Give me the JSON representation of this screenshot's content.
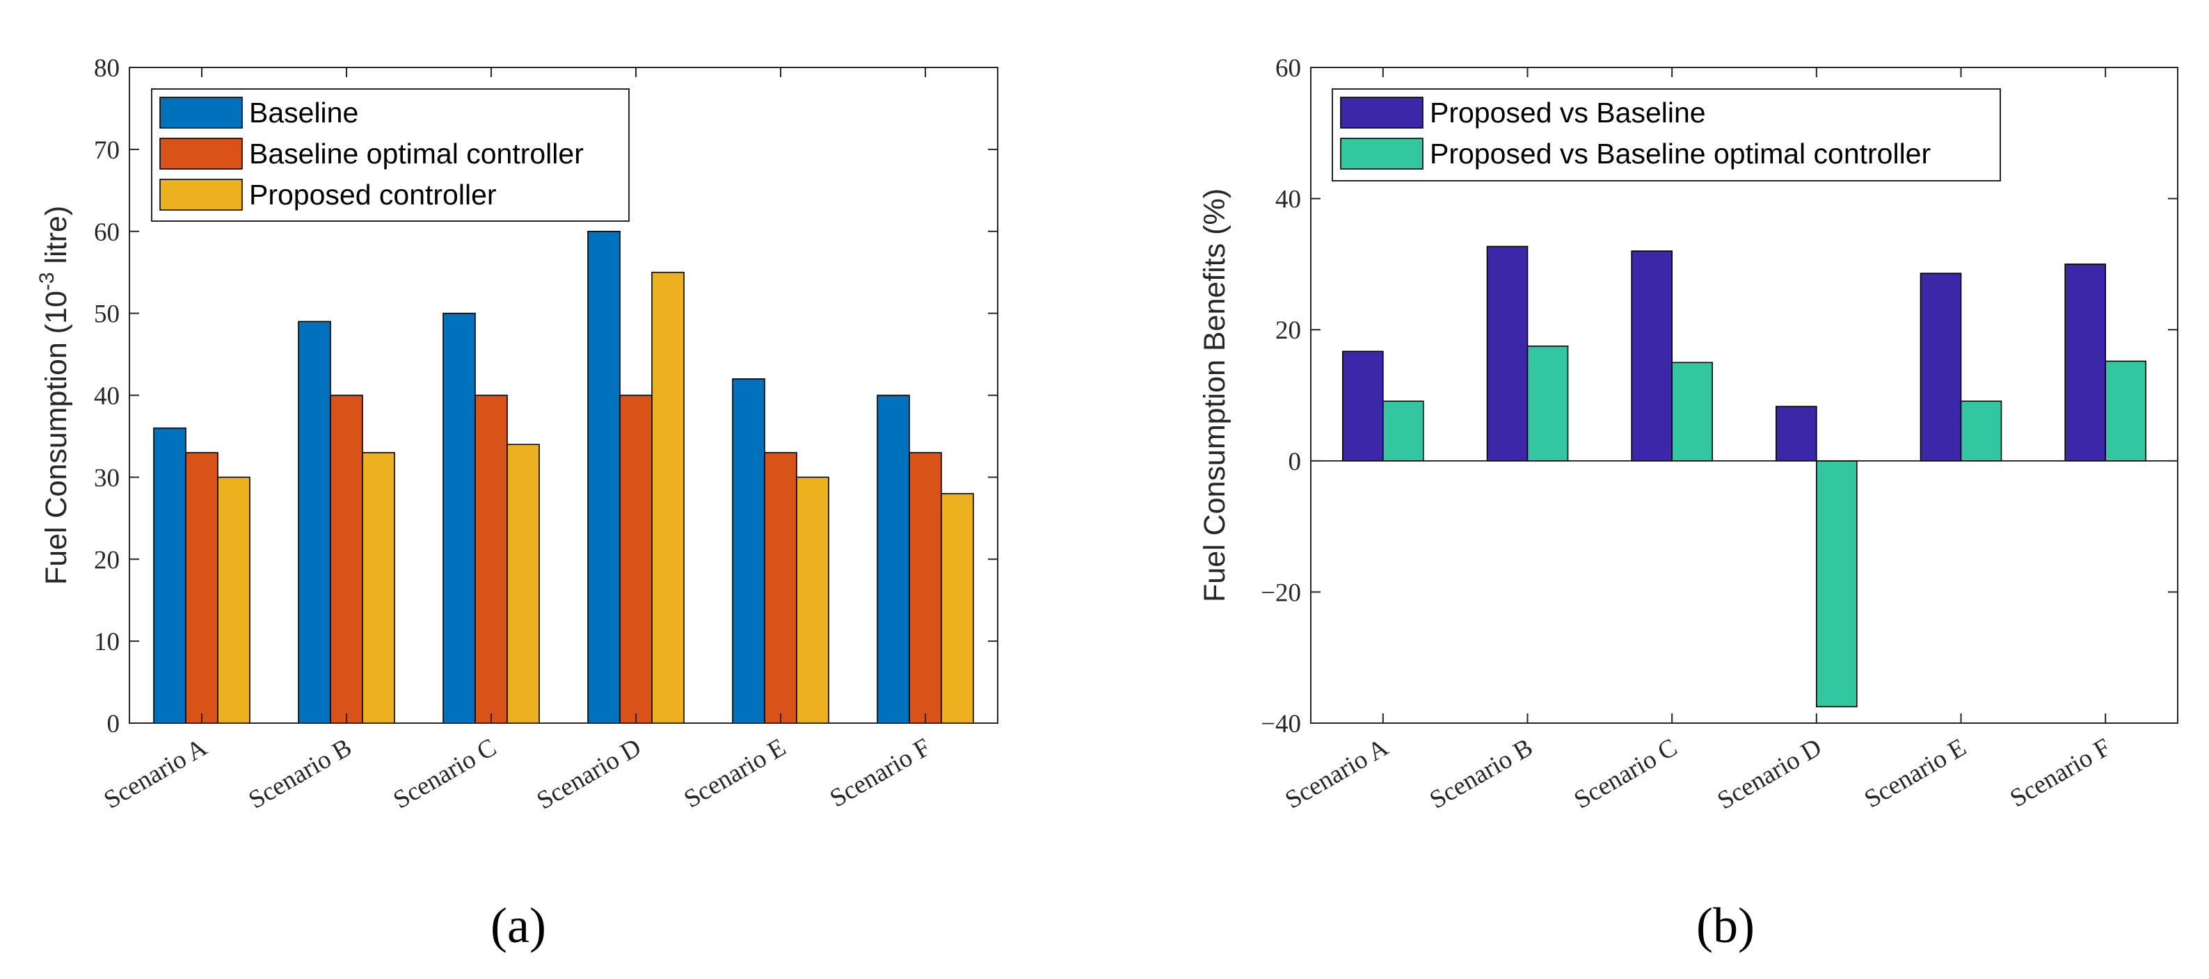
{
  "figure": {
    "panel_labels": [
      "(a)",
      "(b)"
    ]
  },
  "chart_data": [
    {
      "type": "bar",
      "panel": "(a)",
      "categories": [
        "Scenario A",
        "Scenario B",
        "Scenario C",
        "Scenario D",
        "Scenario E",
        "Scenario F"
      ],
      "series": [
        {
          "name": "Baseline",
          "color": "#0072BD",
          "values": [
            36,
            49,
            50,
            60,
            42,
            40
          ]
        },
        {
          "name": "Baseline optimal controller",
          "color": "#D95319",
          "values": [
            33,
            40,
            40,
            40,
            33,
            33
          ]
        },
        {
          "name": "Proposed controller",
          "color": "#EDB120",
          "values": [
            30,
            33,
            34,
            55,
            30,
            28
          ]
        }
      ],
      "ylabel": "Fuel Consumption (10",
      "ylabel_exponent": "-3",
      "ylabel_unit": " litre)",
      "xlabel": "",
      "ylim": [
        0,
        80
      ],
      "yticks": [
        0,
        10,
        20,
        30,
        40,
        50,
        60,
        70,
        80
      ],
      "legend_position": "top-left"
    },
    {
      "type": "bar",
      "panel": "(b)",
      "categories": [
        "Scenario A",
        "Scenario B",
        "Scenario C",
        "Scenario D",
        "Scenario E",
        "Scenario F"
      ],
      "series": [
        {
          "name": "Proposed vs Baseline",
          "color": "#3D27A9",
          "values": [
            16.7,
            32.7,
            32.0,
            8.3,
            28.6,
            30.0
          ]
        },
        {
          "name": "Proposed vs Baseline optimal controller",
          "color": "#32C7A1",
          "values": [
            9.1,
            17.5,
            15.0,
            -37.5,
            9.1,
            15.2
          ]
        }
      ],
      "ylabel": "Fuel Consumption Benefits (%)",
      "xlabel": "",
      "ylim": [
        -40,
        60
      ],
      "yticks": [
        -40,
        -20,
        0,
        20,
        40,
        60
      ],
      "legend_position": "top-left"
    }
  ]
}
